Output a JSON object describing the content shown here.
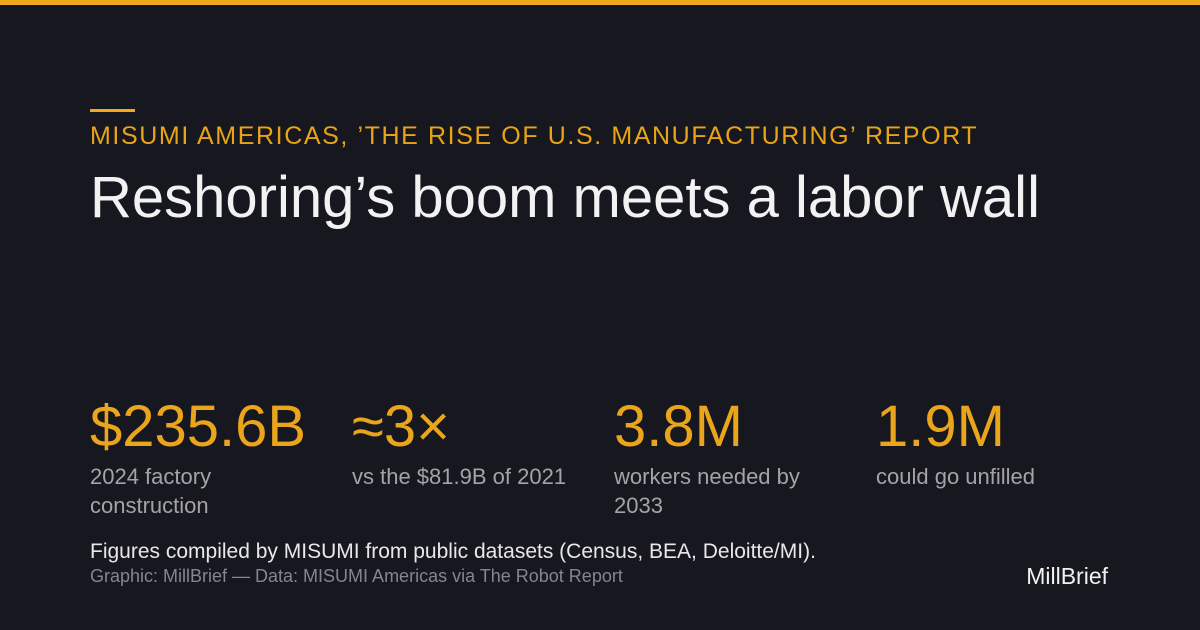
{
  "header": {
    "kicker": "MISUMI AMERICAS, ’THE RISE OF U.S. MANUFACTURING’ REPORT",
    "title": "Reshoring’s boom meets a labor wall"
  },
  "stats": [
    {
      "value": "$235.6B",
      "label": "2024 factory construction"
    },
    {
      "value": "≈3×",
      "label": "vs the $81.9B of 2021"
    },
    {
      "value": "3.8M",
      "label": "workers needed by 2033"
    },
    {
      "value": "1.9M",
      "label": "could go unfilled"
    }
  ],
  "footer": {
    "note": "Figures compiled by MISUMI from public datasets (Census, BEA, Deloitte/MI).",
    "credit": "Graphic: MillBrief — Data: MISUMI Americas via The Robot Report",
    "brand": "MillBrief"
  }
}
